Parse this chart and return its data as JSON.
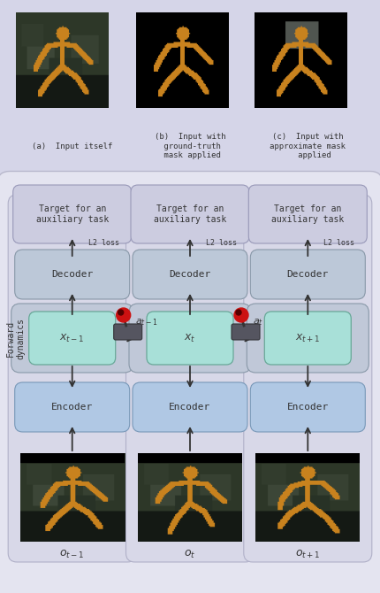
{
  "bg_color": "#ebebf5",
  "top_panel_bg": "#d8d8e8",
  "bottom_bg": "#e0e0ec",
  "encoder_color": "#b8cce8",
  "decoder_color": "#bcc8d8",
  "state_outer_color": "#c0c8d8",
  "state_inner_color": "#b8e8e0",
  "target_box_color": "#c8ccdf",
  "arrow_color": "#333333",
  "text_color": "#333333",
  "cols": [
    0.19,
    0.5,
    0.81
  ],
  "top_labels": [
    "(a)  Input itself",
    "(b)  Input with\n ground-truth\n mask applied",
    "(c)  Input with\napproximate mask\n   applied"
  ],
  "state_labels": [
    "$x_{t-1}$",
    "$x_t$",
    "$x_{t+1}$"
  ],
  "action_labels": [
    "$a_{t-1}$",
    "$a_t$"
  ],
  "obs_labels": [
    "$o_{t-1}$",
    "$o_t$",
    "$o_{t+1}$"
  ],
  "forward_label": "Forward\ndynamics",
  "target_label": "Target for an\nauxiliary task",
  "l2_label": "L2 loss",
  "encoder_label": "Encoder",
  "decoder_label": "Decoder"
}
